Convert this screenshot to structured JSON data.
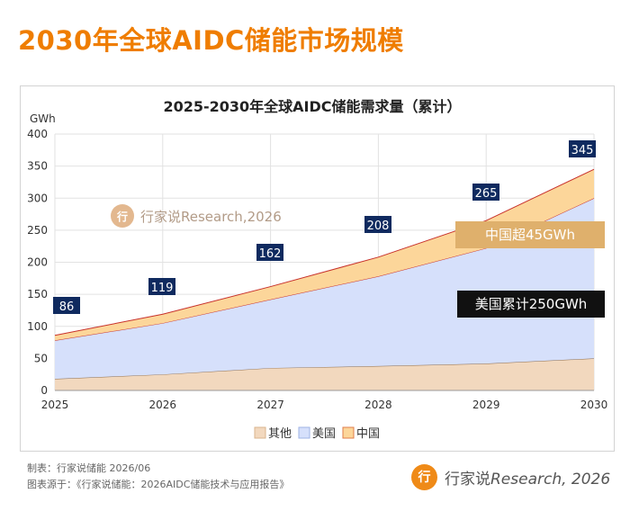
{
  "page_title": "2030年全球AIDC储能市场规模",
  "footer": {
    "maker": "制表：行家说储能 2026/06",
    "source": "图表源于：《行家说储能：2026AIDC储能技术与应用报告》"
  },
  "brand": {
    "name": "行家说",
    "suffix": "Research, 2026",
    "logo_glyph": "行"
  },
  "chart_data": {
    "type": "area",
    "stacked": true,
    "title": "2025-2030年全球AIDC储能需求量（累计）",
    "ylabel": "GWh",
    "xlabel": "",
    "ylim": [
      0,
      400
    ],
    "yticks": [
      0,
      50,
      100,
      150,
      200,
      250,
      300,
      350,
      400
    ],
    "x": [
      "2025",
      "2026",
      "2027",
      "2028",
      "2029",
      "2030"
    ],
    "series": [
      {
        "name": "其他",
        "values": [
          18,
          25,
          35,
          38,
          42,
          50
        ],
        "color": "#f2d8be"
      },
      {
        "name": "美国",
        "values": [
          60,
          80,
          107,
          140,
          180,
          250
        ],
        "color": "#d6e0fb"
      },
      {
        "name": "中国",
        "values": [
          8,
          14,
          20,
          30,
          43,
          45
        ],
        "color": "#fcd69a"
      }
    ],
    "totals": [
      86,
      119,
      162,
      208,
      265,
      345
    ],
    "annotations": [
      "中国超45GWh",
      "美国累计250GWh"
    ],
    "watermark": "行家说Research,2026",
    "grid": true,
    "legend_position": "bottom"
  }
}
